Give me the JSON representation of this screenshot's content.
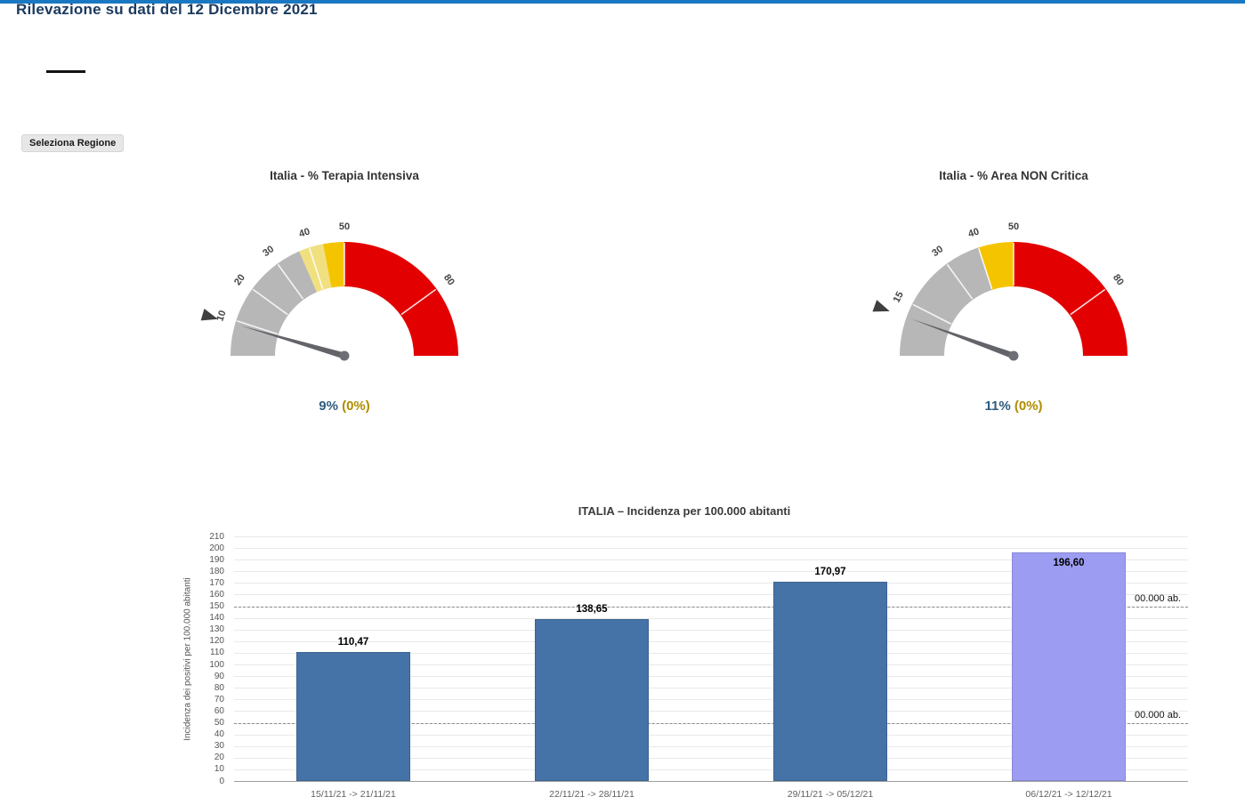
{
  "page": {
    "title": "Rilevazione su dati del 12 Dicembre 2021",
    "region_selector_label": "Seleziona Regione",
    "accent_color": "#1a78c2"
  },
  "chart_data": [
    {
      "type": "gauge",
      "title": "Italia - % Terapia Intensiva",
      "value": 9,
      "value_label": "9%",
      "delta_label": "(0%)",
      "min": 0,
      "max": 100,
      "ticks": [
        10,
        20,
        30,
        40,
        50,
        80
      ],
      "bands": [
        {
          "from": 0,
          "to": 37,
          "color": "#b7b7b7"
        },
        {
          "from": 37,
          "to": 44,
          "color": "#f0e080"
        },
        {
          "from": 44,
          "to": 50,
          "color": "#f5c400"
        },
        {
          "from": 50,
          "to": 100,
          "color": "#e30000"
        }
      ],
      "value_color": "#2e5d7d",
      "delta_color": "#b08c00"
    },
    {
      "type": "gauge",
      "title": "Italia - % Area NON Critica",
      "value": 11,
      "value_label": "11%",
      "delta_label": "(0%)",
      "min": 0,
      "max": 100,
      "ticks": [
        15,
        30,
        40,
        50,
        80
      ],
      "bands": [
        {
          "from": 0,
          "to": 40,
          "color": "#b7b7b7"
        },
        {
          "from": 40,
          "to": 50,
          "color": "#f5c400"
        },
        {
          "from": 50,
          "to": 100,
          "color": "#e30000"
        }
      ],
      "value_color": "#2e5d7d",
      "delta_color": "#b08c00"
    },
    {
      "type": "bar",
      "title": "ITALIA – Incidenza per 100.000 abitanti",
      "xlabel": "",
      "ylabel": "Incidenza dei positivi per 100.000 abitanti",
      "categories": [
        "15/11/21 -> 21/11/21",
        "22/11/21 -> 28/11/21",
        "29/11/21 -> 05/12/21",
        "06/12/21 -> 12/12/21"
      ],
      "values": [
        110.47,
        138.65,
        170.97,
        196.6
      ],
      "value_labels": [
        "110,47",
        "138,65",
        "170,97",
        "196,60"
      ],
      "bar_colors": [
        "#4572a7",
        "#4572a7",
        "#4572a7",
        "#9c9cf2"
      ],
      "label_inside": [
        false,
        false,
        false,
        true
      ],
      "ylim": [
        0,
        210
      ],
      "ytick_step": 10,
      "grid": true,
      "legend": "none",
      "thresholds": [
        {
          "value": 150,
          "label": "00.000 ab."
        },
        {
          "value": 50,
          "label": "00.000 ab."
        }
      ]
    }
  ]
}
